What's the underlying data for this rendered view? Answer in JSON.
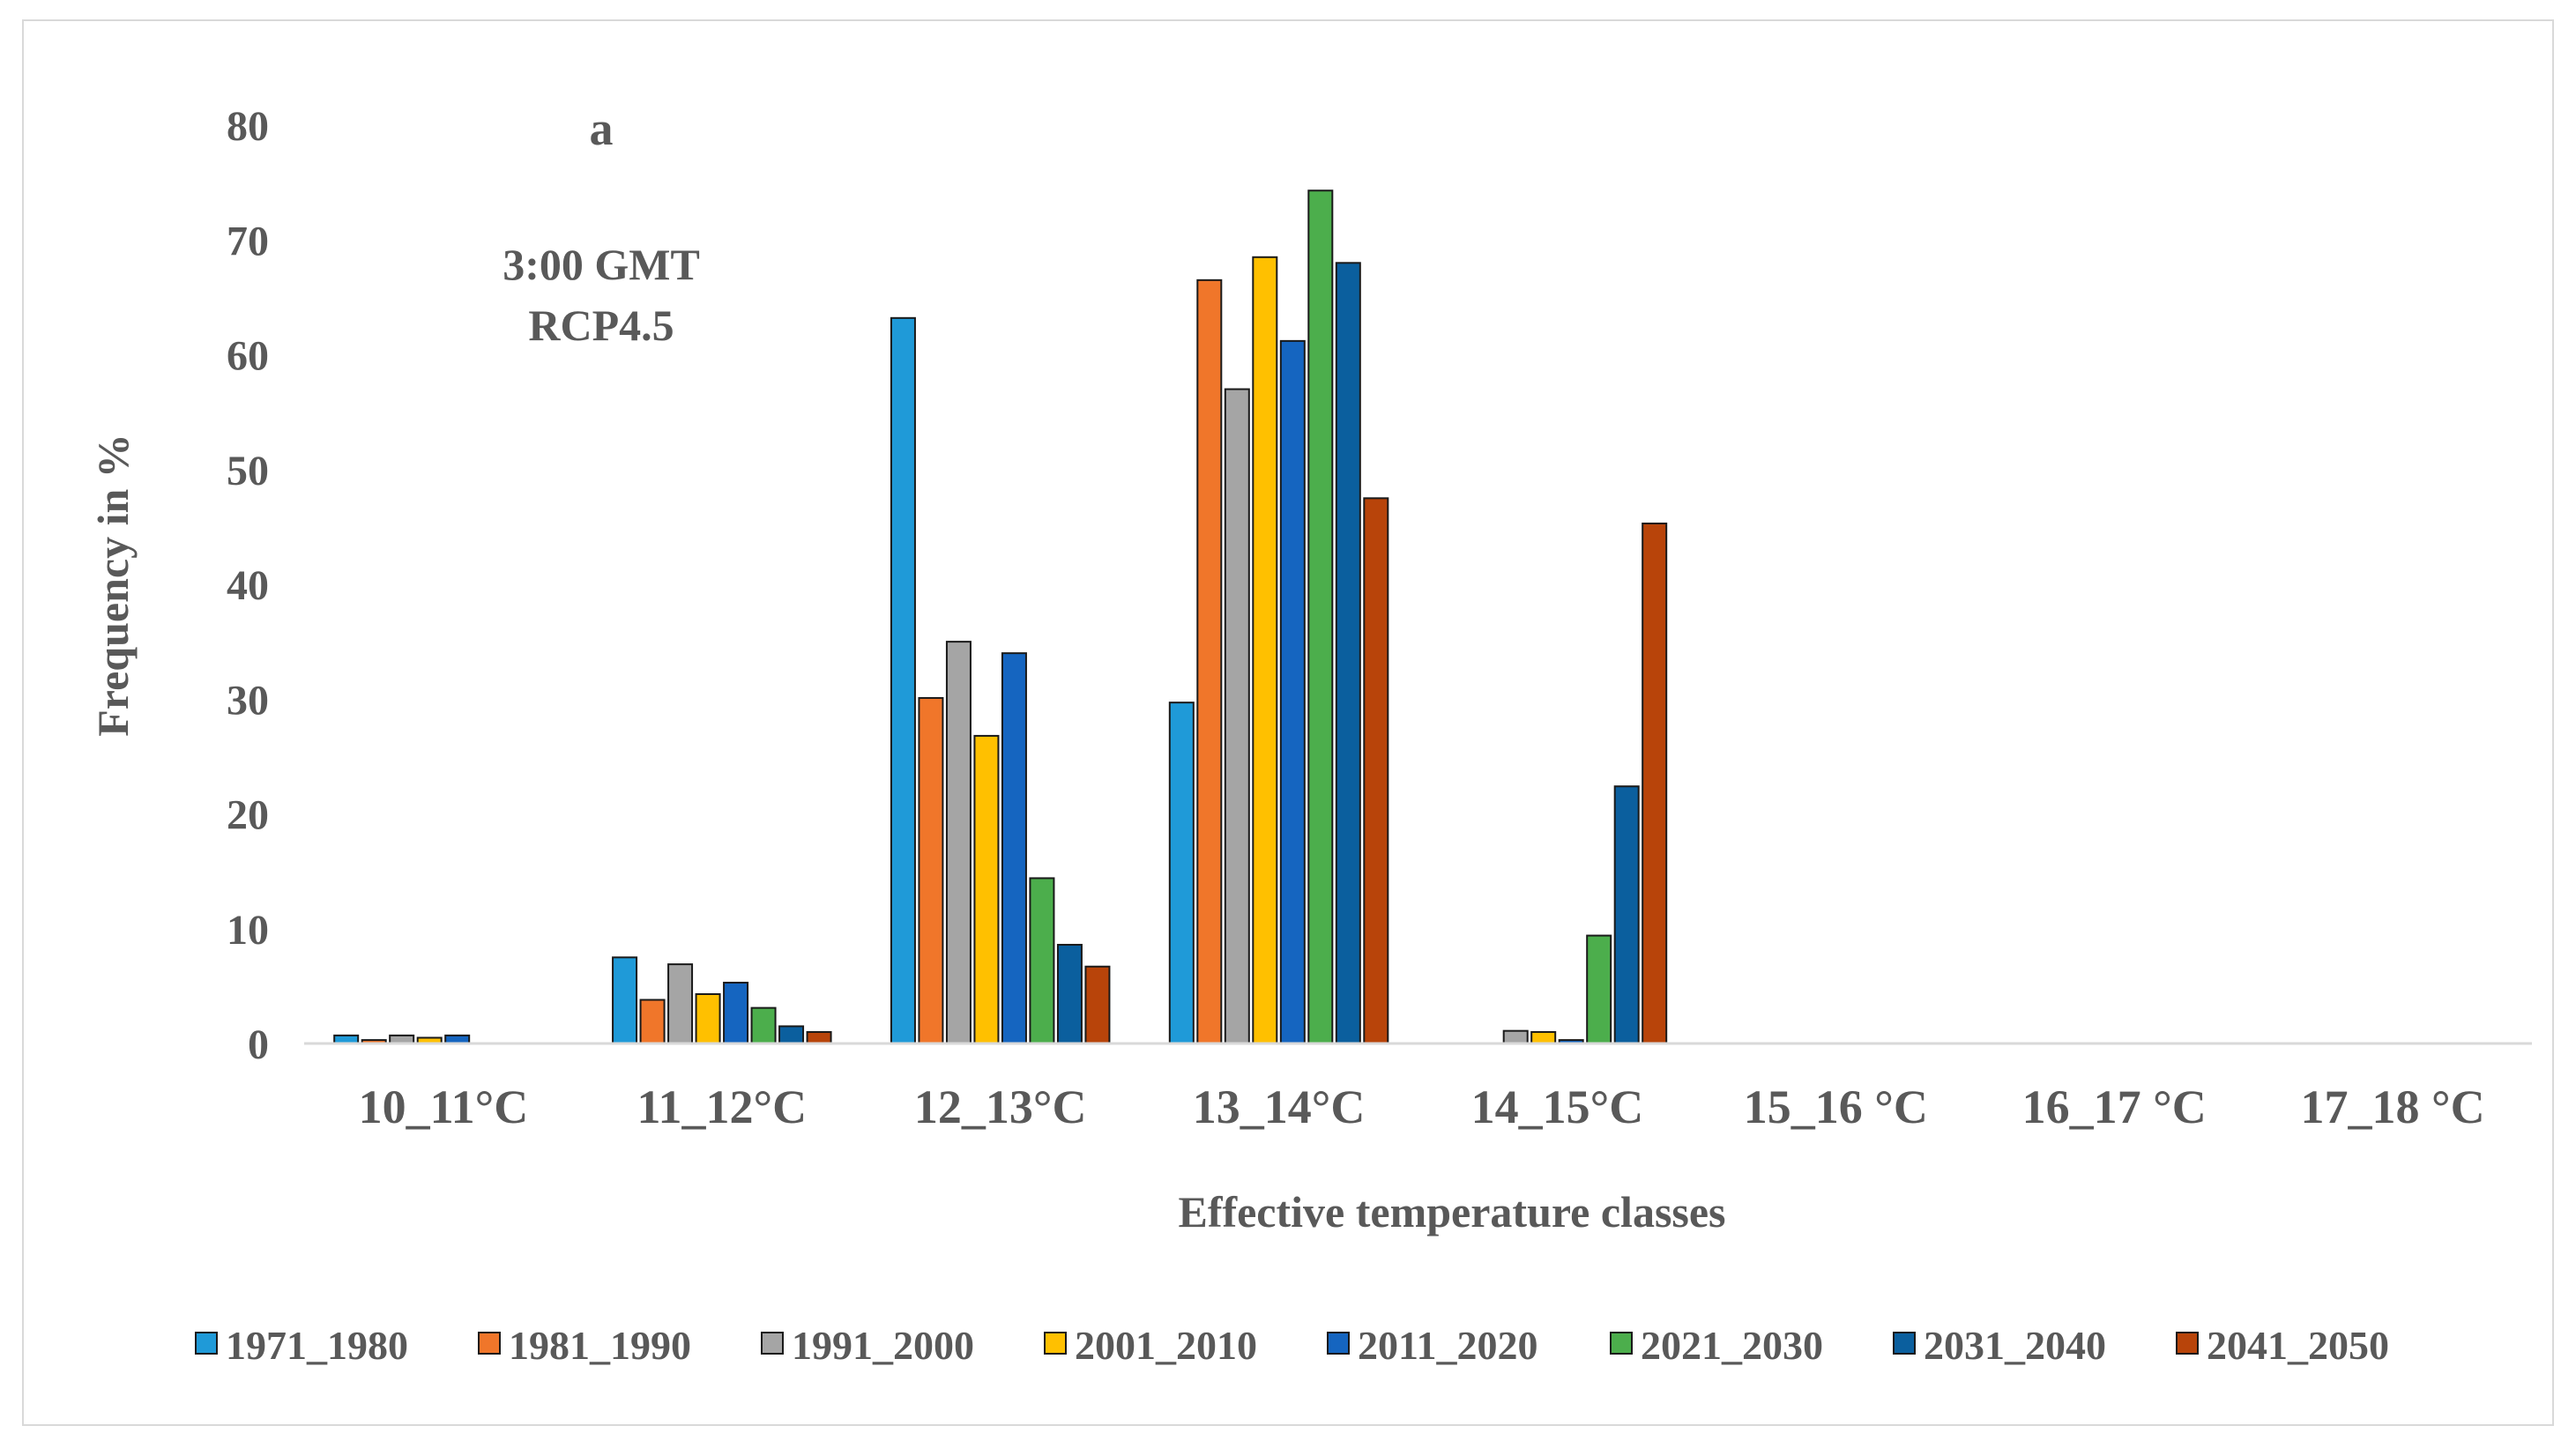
{
  "chart_data": {
    "type": "bar",
    "panel_label": "a",
    "annotations": [
      "3:00 GMT",
      "RCP4.5"
    ],
    "xlabel": "Effective temperature classes",
    "ylabel": "Frequency in %",
    "ylim": [
      0,
      80
    ],
    "yticks": [
      0,
      10,
      20,
      30,
      40,
      50,
      60,
      70,
      80
    ],
    "grid": false,
    "legend_position": "bottom",
    "categories": [
      "10_11°C",
      "11_12°C",
      "12_13°C",
      "13_14°C",
      "14_15°C",
      "15_16 °C",
      "16_17 °C",
      "17_18 °C"
    ],
    "series": [
      {
        "name": "1971_1980",
        "color": "#1f9ad8",
        "values": [
          0.7,
          7.5,
          63.2,
          29.7,
          0,
          0,
          0,
          0
        ]
      },
      {
        "name": "1981_1990",
        "color": "#f0762a",
        "values": [
          0.3,
          3.8,
          30.1,
          66.5,
          0,
          0,
          0,
          0
        ]
      },
      {
        "name": "1991_2000",
        "color": "#a5a5a5",
        "values": [
          0.7,
          6.9,
          35.0,
          57.0,
          1.1,
          0,
          0,
          0
        ]
      },
      {
        "name": "2001_2010",
        "color": "#ffc000",
        "values": [
          0.5,
          4.3,
          26.8,
          68.5,
          1.0,
          0,
          0,
          0
        ]
      },
      {
        "name": "2011_2020",
        "color": "#1565c0",
        "values": [
          0.7,
          5.3,
          34.0,
          61.2,
          0.3,
          0,
          0,
          0
        ]
      },
      {
        "name": "2021_2030",
        "color": "#4cae4c",
        "values": [
          0,
          3.1,
          14.4,
          74.3,
          9.4,
          0,
          0,
          0
        ]
      },
      {
        "name": "2031_2040",
        "color": "#0b5f9e",
        "values": [
          0,
          1.5,
          8.6,
          68.0,
          22.4,
          0,
          0,
          0
        ]
      },
      {
        "name": "2041_2050",
        "color": "#b8440a",
        "values": [
          0,
          1.0,
          6.7,
          47.5,
          45.3,
          0,
          0,
          0
        ]
      }
    ]
  }
}
